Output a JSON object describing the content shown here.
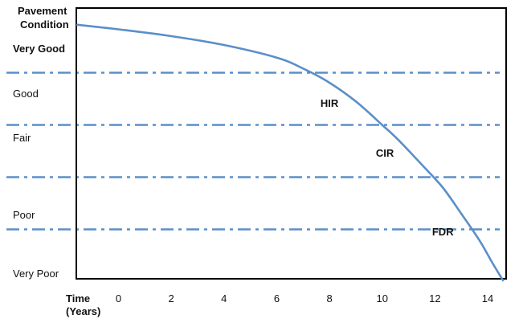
{
  "chart_data": {
    "type": "line",
    "title": "",
    "ylabel_lines": [
      "Pavement",
      "Condition"
    ],
    "xlabel_lines": [
      "Time",
      "(Years)"
    ],
    "xlim": [
      -1.6,
      14.7
    ],
    "x_ticks": [
      0,
      2,
      4,
      6,
      8,
      10,
      12,
      14
    ],
    "condition_levels": [
      "Very Good",
      "Good",
      "Fair",
      "Poor",
      "Very Poor"
    ],
    "threshold_lines": [
      {
        "between": [
          "Very Good",
          "Good"
        ]
      },
      {
        "between": [
          "Good",
          "Fair"
        ]
      },
      {
        "between": [
          "Fair",
          "Poor"
        ]
      },
      {
        "between": [
          "Poor",
          "Very Poor"
        ]
      }
    ],
    "zone_annotations": [
      {
        "text": "HIR",
        "zone": "Good",
        "x": 8.0
      },
      {
        "text": "CIR",
        "zone": "Fair",
        "x": 10.1
      },
      {
        "text": "FDR",
        "zone": "Poor",
        "x": 12.3
      }
    ],
    "series": [
      {
        "x": [
          -1.6,
          0,
          2,
          4,
          6,
          7,
          7.9,
          9,
          10,
          10.6,
          11.5,
          12.3,
          13,
          13.7,
          14.2,
          14.6
        ],
        "y": [
          4.42,
          4.33,
          4.2,
          4.03,
          3.79,
          3.58,
          3.34,
          2.95,
          2.5,
          2.22,
          1.74,
          1.3,
          0.8,
          0.28,
          -0.16,
          -0.49
        ]
      }
    ],
    "colors": {
      "line": "#5b8fc8",
      "threshold": "#5b8fc8",
      "axes": "#000000"
    }
  }
}
